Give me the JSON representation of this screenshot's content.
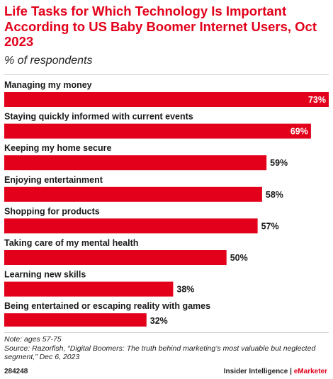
{
  "title": "Life Tasks for Which Technology Is Important According to US Baby Boomer Internet Users, Oct 2023",
  "subtitle": "% of respondents",
  "chart_data": {
    "type": "bar",
    "orientation": "horizontal",
    "categories": [
      "Managing my money",
      "Staying quickly informed with current events",
      "Keeping my home secure",
      "Enjoying entertainment",
      "Shopping for products",
      "Taking care of my mental health",
      "Learning new skills",
      "Being entertained or escaping reality with games"
    ],
    "values": [
      73,
      69,
      59,
      58,
      57,
      50,
      38,
      32
    ],
    "value_labels": [
      "73%",
      "69%",
      "59%",
      "58%",
      "57%",
      "50%",
      "38%",
      "32%"
    ],
    "xlim": [
      0,
      73
    ],
    "grid": false,
    "bar_color": "#e2001a"
  },
  "notes": {
    "note": "Note: ages 57-75",
    "source": "Source: Razorfish, “Digital Boomers: The truth behind marketing’s most valuable but neglected segment,” Dec 6, 2023"
  },
  "footer": {
    "chart_id": "284248",
    "brand": "Insider Intelligence",
    "separator": " | ",
    "brand_accent": "eMarketer"
  }
}
